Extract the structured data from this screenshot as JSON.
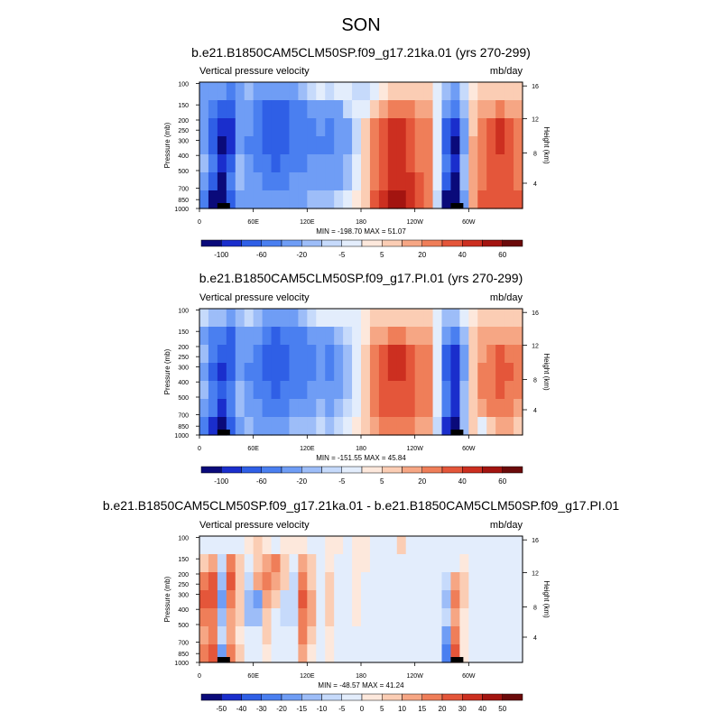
{
  "season": "SON",
  "chart_data": [
    {
      "type": "heatmap",
      "title": "b.e21.B1850CAM5CLM50SP.f09_g17.21ka.01 (yrs 270-299)",
      "left_label": "Vertical pressure velocity",
      "units": "mb/day",
      "ylabel": "Pressure (mb)",
      "ylabel_right": "Height (km)",
      "y_ticks": [
        "100",
        "150",
        "200",
        "250",
        "300",
        "400",
        "500",
        "700",
        "850",
        "1000"
      ],
      "y_right_ticks": [
        "16",
        "12",
        "8",
        "4"
      ],
      "x_ticks": [
        "0",
        "60E",
        "120E",
        "180",
        "120W",
        "60W"
      ],
      "stats": "MIN = -198.70  MAX =  51.07",
      "colorbar_levels": [
        -150,
        -100,
        -80,
        -60,
        -40,
        -20,
        -10,
        -5,
        0,
        5,
        10,
        20,
        30,
        40,
        50,
        60
      ],
      "colorbar_labels": [
        "-100",
        "-60",
        "-20",
        "-5",
        "5",
        "20",
        "40",
        "60"
      ],
      "colorbar_label_index": [
        1,
        3,
        5,
        7,
        9,
        11,
        13,
        15
      ],
      "colors": [
        "#0a0a7a",
        "#1a2ecc",
        "#2f5fe6",
        "#4a7ff0",
        "#6f9df5",
        "#9dbdf8",
        "#c6dafb",
        "#e3edfc",
        "#fde8dc",
        "#fbcdb4",
        "#f6a684",
        "#ef7e59",
        "#e4563a",
        "#cc2f20",
        "#a31410",
        "#6b0a0a"
      ],
      "cells": [
        [
          -30,
          -25,
          -40,
          -60,
          -30,
          -15,
          -25,
          -35,
          -40,
          -35,
          -25,
          -20,
          -10,
          -5,
          -8,
          -5,
          -5,
          -8,
          -10,
          -5,
          0,
          8,
          8,
          5,
          5,
          5,
          -5,
          -20,
          -30,
          -10,
          3,
          5,
          5,
          5,
          5,
          5
        ],
        [
          -40,
          -55,
          -80,
          -80,
          -25,
          -30,
          -50,
          -70,
          -70,
          -70,
          -60,
          -50,
          -35,
          -30,
          -35,
          -25,
          -10,
          -5,
          -5,
          5,
          10,
          20,
          25,
          20,
          15,
          10,
          -5,
          -40,
          -60,
          -20,
          5,
          10,
          15,
          20,
          15,
          10
        ],
        [
          -30,
          -80,
          -100,
          -90,
          -25,
          -40,
          -60,
          -80,
          -80,
          -80,
          -60,
          -60,
          -50,
          -40,
          -50,
          -40,
          -25,
          -10,
          5,
          20,
          30,
          40,
          40,
          30,
          25,
          20,
          -5,
          -80,
          -100,
          -30,
          5,
          20,
          30,
          40,
          30,
          20
        ],
        [
          -30,
          -80,
          -110,
          -100,
          -30,
          -50,
          -60,
          -70,
          -80,
          -80,
          -60,
          -60,
          -50,
          -45,
          -50,
          -40,
          -25,
          -10,
          5,
          20,
          30,
          40,
          40,
          30,
          25,
          20,
          -5,
          -80,
          -110,
          -30,
          10,
          20,
          30,
          40,
          35,
          25
        ],
        [
          -20,
          -60,
          -100,
          -70,
          -20,
          -40,
          -55,
          -60,
          -70,
          -60,
          -50,
          -50,
          -40,
          -35,
          -40,
          -30,
          -20,
          -5,
          5,
          20,
          30,
          40,
          40,
          30,
          25,
          20,
          -5,
          -60,
          -100,
          -20,
          10,
          20,
          30,
          35,
          30,
          20
        ],
        [
          -25,
          -70,
          -110,
          -60,
          -20,
          -30,
          -40,
          -55,
          -60,
          -50,
          -40,
          -40,
          -30,
          -25,
          -30,
          -25,
          -15,
          -5,
          5,
          25,
          35,
          45,
          45,
          40,
          30,
          25,
          -5,
          -70,
          -110,
          -20,
          10,
          25,
          30,
          35,
          30,
          25
        ],
        [
          -60,
          -120,
          -150,
          -80,
          -30,
          -25,
          -30,
          -40,
          -40,
          -35,
          -25,
          -25,
          -20,
          -15,
          -20,
          -10,
          -5,
          0,
          8,
          30,
          40,
          50,
          50,
          45,
          35,
          25,
          -10,
          -120,
          -150,
          -30,
          15,
          30,
          30,
          35,
          35,
          30
        ]
      ],
      "topo": [
        0,
        0,
        1,
        0,
        0,
        0,
        0,
        0,
        0,
        0,
        0,
        0,
        0,
        0,
        0,
        0,
        0,
        0,
        0,
        0,
        0,
        0,
        0,
        0,
        0,
        0,
        0,
        0,
        1,
        0,
        0,
        0,
        0,
        0,
        0,
        0
      ]
    },
    {
      "type": "heatmap",
      "title": "b.e21.B1850CAM5CLM50SP.f09_g17.PI.01 (yrs 270-299)",
      "left_label": "Vertical pressure velocity",
      "units": "mb/day",
      "ylabel": "Pressure (mb)",
      "ylabel_right": "Height (km)",
      "y_ticks": [
        "100",
        "150",
        "200",
        "250",
        "300",
        "400",
        "500",
        "700",
        "850",
        "1000"
      ],
      "y_right_ticks": [
        "16",
        "12",
        "8",
        "4"
      ],
      "x_ticks": [
        "0",
        "60E",
        "120E",
        "180",
        "120W",
        "60W"
      ],
      "stats": "MIN = -151.55  MAX =  45.84",
      "colorbar_levels": [
        -150,
        -100,
        -80,
        -60,
        -40,
        -20,
        -10,
        -5,
        0,
        5,
        10,
        20,
        30,
        40,
        50,
        60
      ],
      "colorbar_labels": [
        "-100",
        "-60",
        "-20",
        "-5",
        "5",
        "20",
        "40",
        "60"
      ],
      "colorbar_label_index": [
        1,
        3,
        5,
        7,
        9,
        11,
        13,
        15
      ],
      "colors": [
        "#0a0a7a",
        "#1a2ecc",
        "#2f5fe6",
        "#4a7ff0",
        "#6f9df5",
        "#9dbdf8",
        "#c6dafb",
        "#e3edfc",
        "#fde8dc",
        "#fbcdb4",
        "#f6a684",
        "#ef7e59",
        "#e4563a",
        "#cc2f20",
        "#a31410",
        "#6b0a0a"
      ],
      "cells": [
        [
          -10,
          -15,
          -20,
          -25,
          -20,
          -10,
          -20,
          -30,
          -35,
          -30,
          -25,
          -20,
          -10,
          -5,
          -5,
          -5,
          -3,
          -3,
          3,
          5,
          8,
          8,
          8,
          5,
          5,
          5,
          -5,
          -15,
          -20,
          -5,
          3,
          5,
          5,
          5,
          5,
          5
        ],
        [
          -30,
          -45,
          -60,
          -70,
          -25,
          -25,
          -40,
          -60,
          -65,
          -60,
          -50,
          -45,
          -35,
          -25,
          -30,
          -20,
          -10,
          -5,
          3,
          10,
          15,
          20,
          20,
          15,
          15,
          10,
          -5,
          -35,
          -50,
          -15,
          5,
          10,
          15,
          15,
          10,
          10
        ],
        [
          -20,
          -60,
          -80,
          -80,
          -25,
          -40,
          -55,
          -70,
          -70,
          -70,
          -55,
          -60,
          -45,
          -35,
          -45,
          -35,
          -20,
          -5,
          5,
          20,
          30,
          40,
          40,
          30,
          25,
          20,
          -5,
          -70,
          -90,
          -25,
          5,
          15,
          25,
          30,
          25,
          20
        ],
        [
          -25,
          -70,
          -90,
          -80,
          -30,
          -45,
          -60,
          -70,
          -80,
          -70,
          -55,
          -60,
          -45,
          -40,
          -50,
          -35,
          -20,
          -5,
          5,
          20,
          30,
          40,
          40,
          30,
          25,
          20,
          -5,
          -70,
          -100,
          -25,
          8,
          20,
          25,
          30,
          30,
          20
        ],
        [
          -20,
          -55,
          -80,
          -60,
          -20,
          -40,
          -55,
          -60,
          -65,
          -55,
          -45,
          -50,
          -40,
          -30,
          -40,
          -30,
          -15,
          -5,
          5,
          20,
          30,
          35,
          35,
          30,
          25,
          20,
          -5,
          -55,
          -90,
          -20,
          8,
          20,
          25,
          30,
          25,
          20
        ],
        [
          -25,
          -60,
          -90,
          -50,
          -20,
          -30,
          -40,
          -50,
          -55,
          -45,
          -35,
          -40,
          -30,
          -20,
          -25,
          -20,
          -10,
          -5,
          5,
          20,
          30,
          35,
          35,
          30,
          25,
          20,
          -5,
          -60,
          -100,
          -15,
          5,
          15,
          20,
          20,
          20,
          15
        ],
        [
          -50,
          -100,
          -120,
          -70,
          -25,
          -20,
          -25,
          -35,
          -35,
          -30,
          -20,
          -20,
          -15,
          -10,
          -15,
          -10,
          -5,
          0,
          5,
          15,
          20,
          25,
          25,
          20,
          15,
          10,
          -10,
          -100,
          -140,
          -20,
          5,
          -5,
          5,
          10,
          10,
          5
        ]
      ],
      "topo": [
        0,
        0,
        1,
        0,
        0,
        0,
        0,
        0,
        0,
        0,
        0,
        0,
        0,
        0,
        0,
        0,
        0,
        0,
        0,
        0,
        0,
        0,
        0,
        0,
        0,
        0,
        0,
        0,
        1,
        0,
        0,
        0,
        0,
        0,
        0,
        0
      ]
    },
    {
      "type": "heatmap",
      "title": "b.e21.B1850CAM5CLM50SP.f09_g17.21ka.01 - b.e21.B1850CAM5CLM50SP.f09_g17.PI.01",
      "left_label": "Vertical pressure velocity",
      "units": "mb/day",
      "ylabel": "Pressure (mb)",
      "ylabel_right": "Height (km)",
      "y_ticks": [
        "100",
        "150",
        "200",
        "250",
        "300",
        "400",
        "500",
        "700",
        "850",
        "1000"
      ],
      "y_right_ticks": [
        "16",
        "12",
        "8",
        "4"
      ],
      "x_ticks": [
        "0",
        "60E",
        "120E",
        "180",
        "120W",
        "60W"
      ],
      "stats": "MIN = -48.57  MAX =  41.24",
      "colorbar_levels": [
        -60,
        -50,
        -40,
        -30,
        -20,
        -15,
        -10,
        -5,
        0,
        5,
        10,
        15,
        20,
        30,
        40,
        50
      ],
      "colorbar_labels": [
        "-50",
        "-40",
        "-30",
        "-20",
        "-15",
        "-10",
        "-5",
        "0",
        "5",
        "10",
        "15",
        "20",
        "30",
        "40",
        "50"
      ],
      "colorbar_label_index": [
        1,
        2,
        3,
        4,
        5,
        6,
        7,
        8,
        9,
        10,
        11,
        12,
        13,
        14,
        15
      ],
      "colors": [
        "#0a0a7a",
        "#1a2ecc",
        "#2f5fe6",
        "#4a7ff0",
        "#6f9df5",
        "#9dbdf8",
        "#c6dafb",
        "#e3edfc",
        "#fde8dc",
        "#fbcdb4",
        "#f6a684",
        "#ef7e59",
        "#e4563a",
        "#cc2f20",
        "#a31410",
        "#6b0a0a"
      ],
      "cells": [
        [
          -3,
          -3,
          -5,
          -3,
          -3,
          3,
          5,
          3,
          -3,
          3,
          3,
          2,
          -3,
          -3,
          2,
          2,
          -3,
          3,
          3,
          -3,
          -3,
          -3,
          5,
          -3,
          -3,
          -3,
          -3,
          -3,
          -3,
          -3,
          -3,
          -3,
          -3,
          -3,
          -3,
          -3
        ],
        [
          5,
          10,
          -10,
          15,
          5,
          -5,
          5,
          10,
          15,
          5,
          -5,
          10,
          5,
          -5,
          3,
          -3,
          -3,
          3,
          2,
          -2,
          -2,
          -2,
          -2,
          -2,
          -3,
          -3,
          -3,
          -5,
          -5,
          3,
          -3,
          -3,
          -3,
          -3,
          -3,
          -3
        ],
        [
          15,
          20,
          -15,
          20,
          5,
          -10,
          10,
          15,
          10,
          5,
          -10,
          15,
          5,
          -5,
          5,
          -5,
          -3,
          3,
          -3,
          -3,
          -3,
          -3,
          -3,
          -3,
          -3,
          -3,
          -3,
          -10,
          10,
          5,
          -3,
          -3,
          -3,
          -3,
          -3,
          -3
        ],
        [
          20,
          20,
          -20,
          15,
          5,
          -15,
          -20,
          10,
          5,
          -10,
          -10,
          20,
          10,
          -5,
          5,
          -5,
          -3,
          3,
          -3,
          -3,
          -3,
          -3,
          -3,
          -3,
          -3,
          -3,
          -3,
          -15,
          15,
          5,
          -3,
          -3,
          -3,
          -3,
          -3,
          -3
        ],
        [
          15,
          15,
          -15,
          10,
          5,
          -15,
          -15,
          5,
          -5,
          -10,
          -10,
          15,
          10,
          -5,
          5,
          -5,
          -3,
          3,
          -3,
          -3,
          -3,
          -3,
          -3,
          -3,
          -3,
          -3,
          -3,
          -10,
          10,
          3,
          -3,
          -3,
          -3,
          -3,
          -3,
          -3
        ],
        [
          10,
          15,
          -10,
          10,
          3,
          -5,
          -5,
          5,
          -5,
          -5,
          -5,
          15,
          5,
          -3,
          3,
          -3,
          -3,
          -3,
          -3,
          -3,
          -3,
          -3,
          -3,
          -3,
          -3,
          -3,
          -3,
          -20,
          15,
          3,
          -3,
          -3,
          -3,
          -3,
          -3,
          -3
        ],
        [
          15,
          20,
          -20,
          15,
          5,
          -5,
          -5,
          3,
          -3,
          -3,
          -3,
          10,
          3,
          -3,
          3,
          -3,
          -3,
          -3,
          -3,
          -3,
          -3,
          -3,
          -3,
          -3,
          -3,
          -3,
          -3,
          -30,
          20,
          3,
          -3,
          -3,
          -3,
          -3,
          -3,
          -3
        ]
      ],
      "topo": [
        0,
        0,
        1,
        0,
        0,
        0,
        0,
        0,
        0,
        0,
        0,
        0,
        0,
        0,
        0,
        0,
        0,
        0,
        0,
        0,
        0,
        0,
        0,
        0,
        0,
        0,
        0,
        0,
        1,
        0,
        0,
        0,
        0,
        0,
        0,
        0
      ]
    }
  ]
}
